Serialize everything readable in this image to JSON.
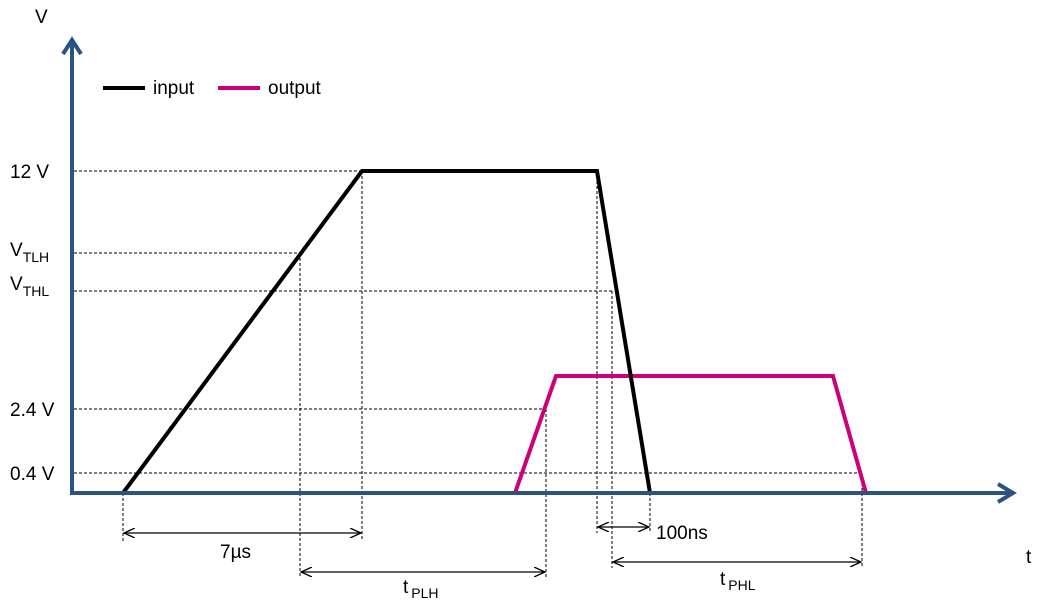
{
  "axes": {
    "y_label": "V",
    "x_label": "t"
  },
  "legend": [
    {
      "name": "input",
      "color": "#000000"
    },
    {
      "name": "output",
      "color": "#cc0077"
    }
  ],
  "levels": {
    "v12": "12 V",
    "vtlh": {
      "main": "V",
      "sub": "TLH"
    },
    "vthl": {
      "main": "V",
      "sub": "THL"
    },
    "v2_4": "2.4 V",
    "v0_4": "0.4 V"
  },
  "intervals": {
    "rise_time": "7µs",
    "fall_time": "100ns",
    "tplh": {
      "main": "t",
      "sub": "PLH"
    },
    "tphl": {
      "main": "t",
      "sub": "PHL"
    }
  },
  "colors": {
    "axis": "#2a5384",
    "input": "#000000",
    "output": "#cc0077"
  }
}
